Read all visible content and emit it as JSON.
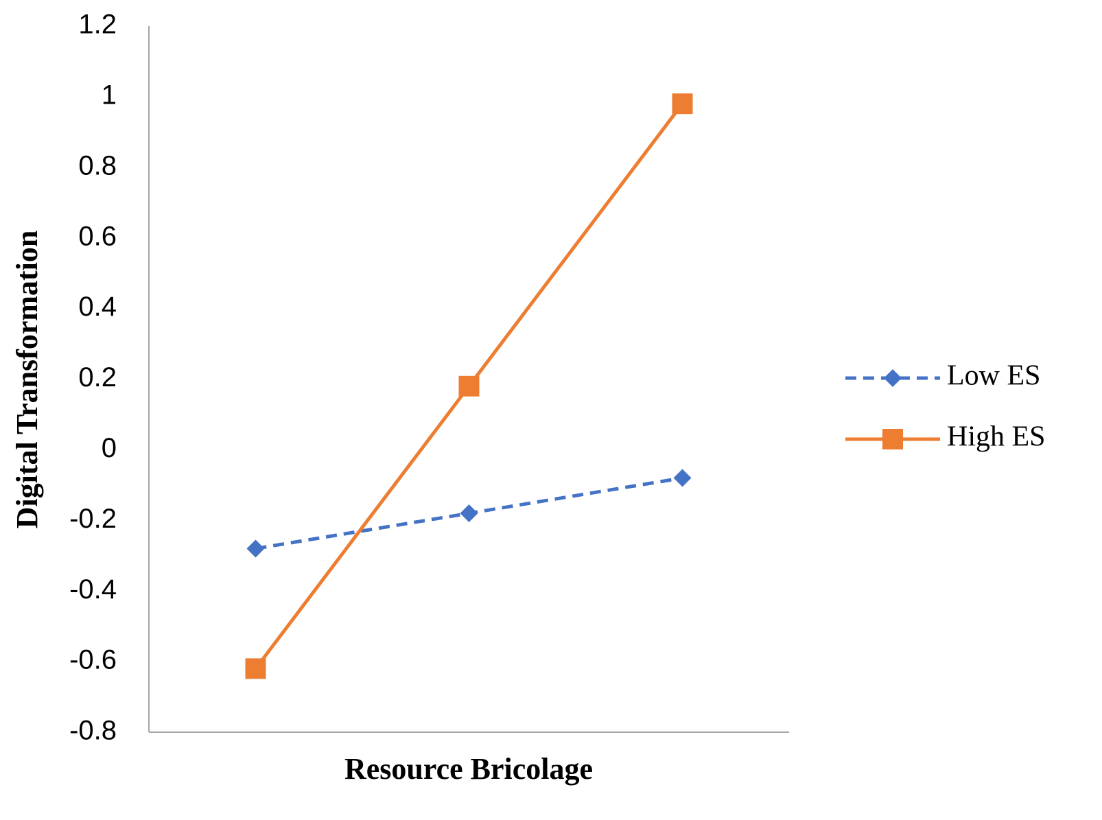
{
  "chart_data": {
    "type": "line",
    "x_label": "Resource Bricolage",
    "y_label": "Digital Transformation",
    "categories": [
      null,
      null,
      null
    ],
    "series": [
      {
        "name": "Low ES",
        "color": "#4472c4",
        "line_style": "dashed",
        "marker": "diamond",
        "values": [
          -0.28,
          -0.18,
          -0.08
        ]
      },
      {
        "name": "High ES",
        "color": "#ed7d31",
        "line_style": "solid",
        "marker": "square",
        "values": [
          -0.62,
          0.18,
          0.98
        ]
      }
    ],
    "ylim": [
      -0.8,
      1.2
    ],
    "yticks": [
      -0.8,
      -0.6,
      -0.4,
      -0.2,
      0,
      0.2,
      0.4,
      0.6,
      0.8,
      1,
      1.2
    ],
    "grid": false,
    "legend": "right"
  }
}
